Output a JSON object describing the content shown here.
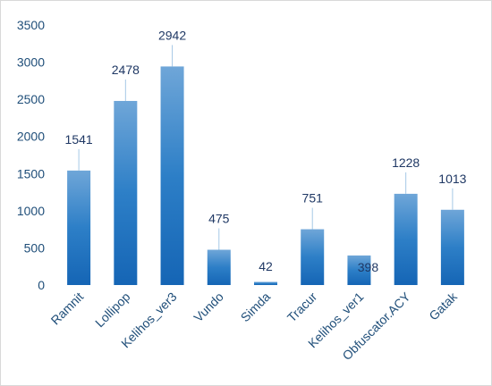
{
  "chart_data": {
    "type": "bar",
    "title": "",
    "xlabel": "",
    "ylabel": "",
    "categories": [
      "Ramnit",
      "Lollipop",
      "Kelihos_ver3",
      "Vundo",
      "Simda",
      "Tracur",
      "Kelihos_ver1",
      "Obfuscator.ACY",
      "Gatak"
    ],
    "values": [
      1541,
      2478,
      2942,
      475,
      42,
      751,
      398,
      1228,
      1013
    ],
    "data_labels": [
      "1541",
      "2478",
      "2942",
      "475",
      "42",
      "751",
      "398",
      "1228",
      "1013"
    ],
    "ylim": [
      0,
      3500
    ],
    "yticks": [
      "0",
      "500",
      "1000",
      "1500",
      "2000",
      "2500",
      "3000",
      "3500"
    ],
    "grid": false,
    "legend": "none",
    "colors": {
      "bar_top": "#6fa6d8",
      "bar_mid": "#2d7fc7",
      "bar_bottom": "#1565b5",
      "label": "#1f3864",
      "leader": "#a6c8e6"
    }
  }
}
